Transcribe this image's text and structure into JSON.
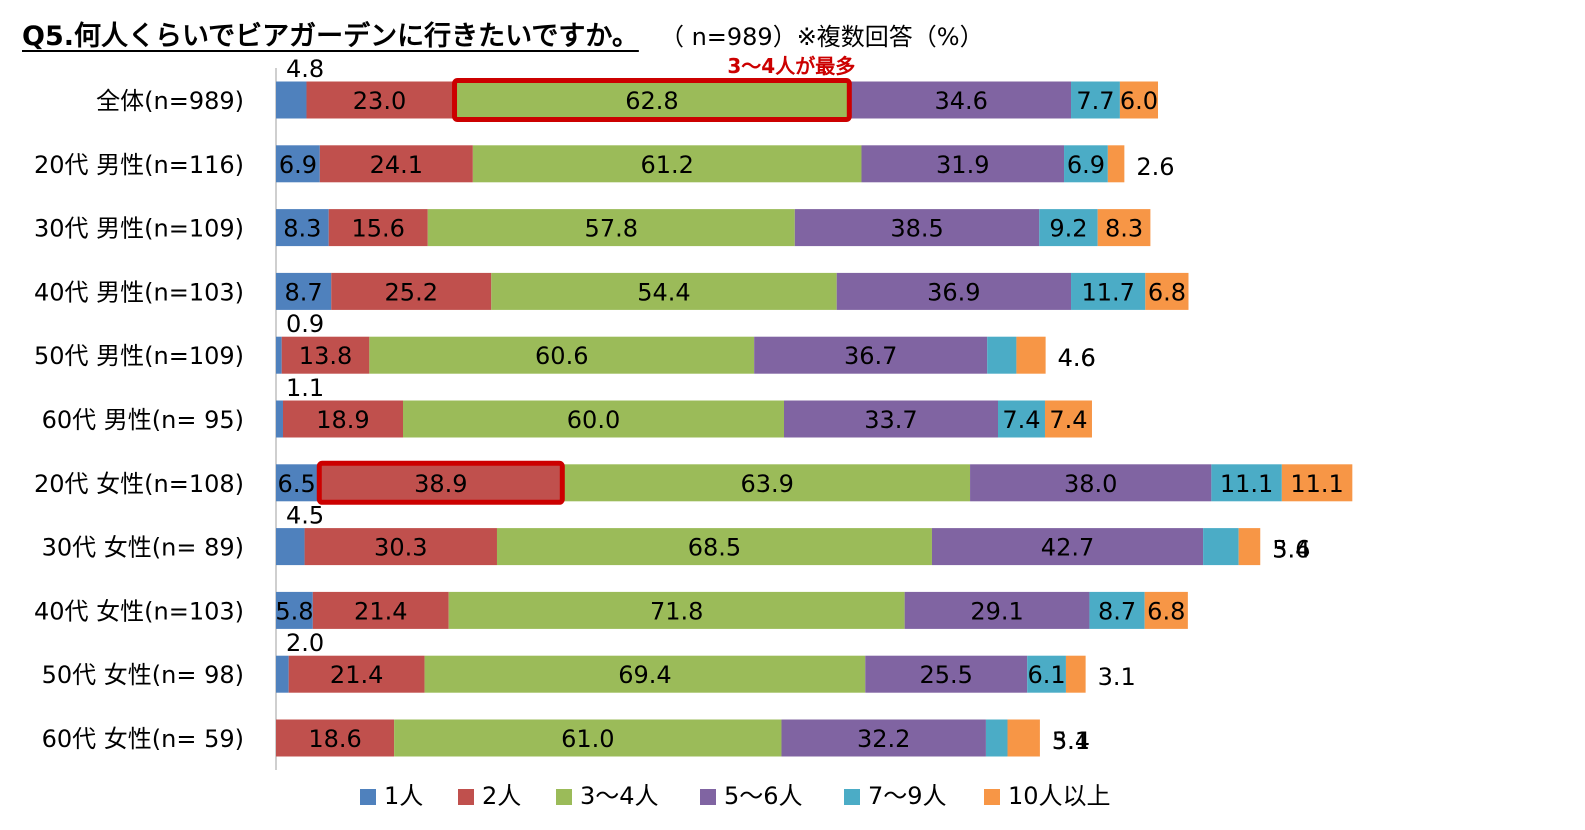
{
  "title": "Q5.何人くらいでビアガーデンに行きたいですか。",
  "subtitle": "（ n=989）※複数回答（%）",
  "colors": {
    "1人": "#4f81bd",
    "2人": "#c0504d",
    "3～4人": "#9bbb59",
    "5～6人": "#8064a2",
    "7～9人": "#4bacc6",
    "10人以上": "#f79646",
    "highlight": "#cc0000",
    "axis": "#bfbfbf"
  },
  "chart_data": {
    "type": "bar",
    "orientation": "horizontal",
    "stacked": true,
    "title": "Q5.何人くらいでビアガーデンに行きたいですか。",
    "note": "（ n=989）※複数回答（%）",
    "categories": [
      "全体(n=989)",
      "20代 男性(n=116)",
      "30代 男性(n=109)",
      "40代 男性(n=103)",
      "50代 男性(n=109)",
      "60代 男性(n=  95)",
      "20代 女性(n=108)",
      "30代 女性(n=  89)",
      "40代 女性(n=103)",
      "50代 女性(n=  98)",
      "60代 女性(n=  59)"
    ],
    "series": [
      {
        "name": "1人",
        "values": [
          4.8,
          6.9,
          8.3,
          8.7,
          0.9,
          1.1,
          6.5,
          4.5,
          5.8,
          2.0,
          0.0
        ]
      },
      {
        "name": "2人",
        "values": [
          23.0,
          24.1,
          15.6,
          25.2,
          13.8,
          18.9,
          38.9,
          30.3,
          21.4,
          21.4,
          18.6
        ]
      },
      {
        "name": "3～4人",
        "values": [
          62.8,
          61.2,
          57.8,
          54.4,
          60.6,
          60.0,
          63.9,
          68.5,
          71.8,
          69.4,
          61.0
        ]
      },
      {
        "name": "5～6人",
        "values": [
          34.6,
          31.9,
          38.5,
          36.9,
          36.7,
          33.7,
          38.0,
          42.7,
          29.1,
          25.5,
          32.2
        ]
      },
      {
        "name": "7～9人",
        "values": [
          7.7,
          6.9,
          9.2,
          11.7,
          4.6,
          7.4,
          11.1,
          5.6,
          8.7,
          6.1,
          3.4
        ]
      },
      {
        "name": "10人以上",
        "values": [
          6.0,
          2.6,
          8.3,
          6.8,
          4.6,
          7.4,
          11.1,
          3.4,
          6.8,
          3.1,
          5.1
        ]
      }
    ],
    "xlim": [
      0,
      210
    ],
    "legend_position": "bottom",
    "annotations": [
      {
        "text": "3～4人が最多",
        "row": 0,
        "series": "3～4人"
      },
      {
        "text": "",
        "row": 6,
        "series": "2人"
      }
    ]
  }
}
